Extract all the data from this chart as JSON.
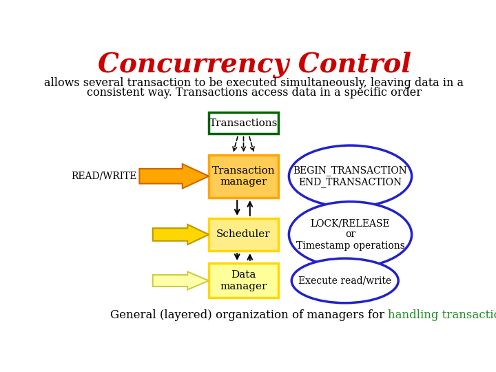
{
  "title": "Concurrency Control",
  "title_color": "#cc0000",
  "title_fontsize": 28,
  "subtitle_line1": "allows several transaction to be executed simultaneously, leaving data in a",
  "subtitle_line2": "consistent way. Transactions access data in a specific order",
  "subtitle_fontsize": 11.5,
  "footer_plain": "General (layered) organization of managers for ",
  "footer_highlight": "handling transactions",
  "footer_dot": ".",
  "footer_color": "#228B22",
  "footer_fontsize": 12,
  "bg_color": "#ffffff",
  "ellipse_color": "#2222cc"
}
